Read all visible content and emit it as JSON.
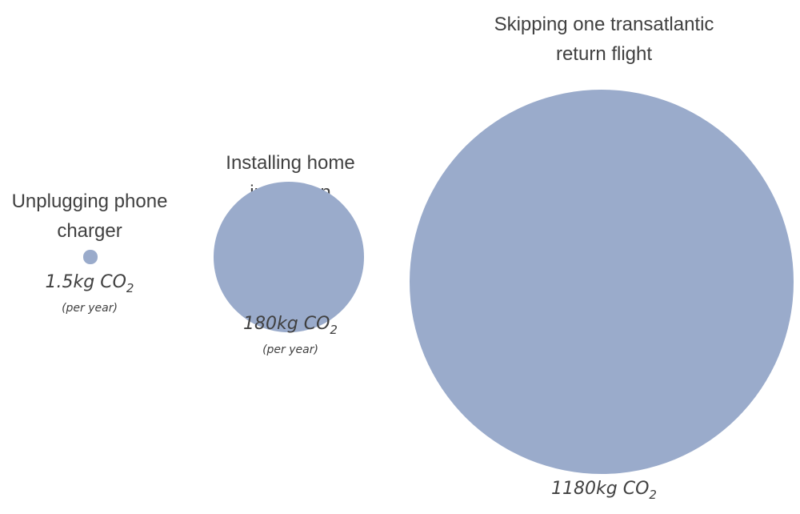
{
  "chart_data": {
    "type": "bubble",
    "unit_label": "kg CO2",
    "items": [
      {
        "label_lines": [
          "Unplugging phone",
          "charger"
        ],
        "value": 1.5,
        "value_text": "1.5kg CO",
        "value_sub": "2",
        "note": "(per year)"
      },
      {
        "label_lines": [
          "Installing home",
          "insulation"
        ],
        "value": 180,
        "value_text": "180kg CO",
        "value_sub": "2",
        "note": "(per year)"
      },
      {
        "label_lines": [
          "Skipping one transatlantic",
          "return flight"
        ],
        "value": 1180,
        "value_text": "1180kg CO",
        "value_sub": "2",
        "note": ""
      }
    ],
    "bubble_color": "#9aabcb",
    "scaling": "area proportional to value"
  }
}
